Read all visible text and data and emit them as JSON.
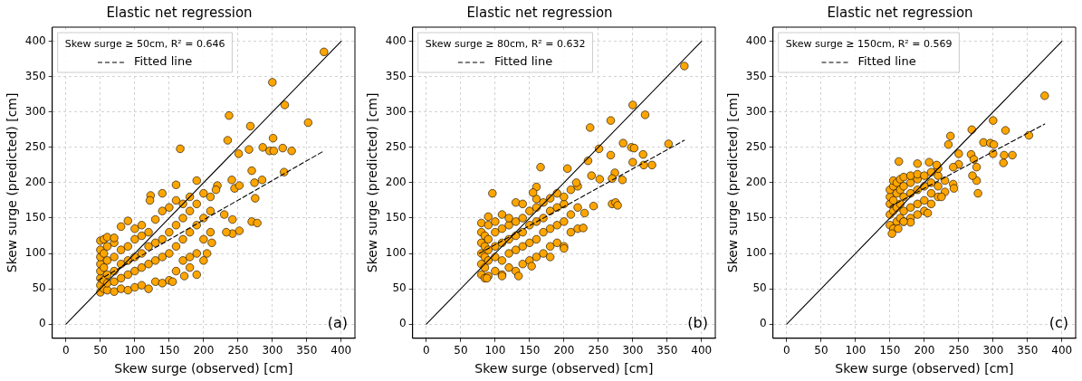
{
  "chart_data": [
    {
      "type": "scatter",
      "title": "Elastic net regression",
      "xlabel": "Skew surge (observed) [cm]",
      "ylabel": "Skew surge (predicted) [cm]",
      "legend_title": "Skew surge ≥ 50cm, R² = 0.646",
      "legend": "top left",
      "grid": true,
      "annotations": [
        "(a)"
      ],
      "xlim": [
        -20,
        420
      ],
      "ylim": [
        -20,
        420
      ],
      "xticks": [
        0,
        50,
        100,
        150,
        200,
        250,
        300,
        350,
        400
      ],
      "yticks": [
        0,
        50,
        100,
        150,
        200,
        250,
        300,
        350,
        400
      ],
      "series": [
        {
          "marker": "circle",
          "color": "#ffa500",
          "x": [
            50,
            50,
            50,
            50,
            50,
            50,
            50,
            50,
            55,
            55,
            55,
            55,
            55,
            60,
            60,
            60,
            60,
            60,
            60,
            70,
            70,
            70,
            70,
            70,
            70,
            80,
            80,
            80,
            80,
            80,
            90,
            90,
            90,
            90,
            90,
            100,
            100,
            100,
            100,
            100,
            110,
            110,
            110,
            110,
            110,
            120,
            120,
            120,
            120,
            130,
            130,
            130,
            130,
            140,
            140,
            140,
            140,
            150,
            150,
            150,
            150,
            160,
            160,
            160,
            160,
            170,
            170,
            170,
            170,
            180,
            180,
            180,
            180,
            190,
            190,
            190,
            200,
            200,
            200,
            210,
            210,
            210,
            375,
            300,
            318,
            237,
            352,
            268,
            235,
            301,
            166,
            266,
            286,
            296,
            302,
            315,
            328,
            251,
            270,
            317,
            274,
            285,
            241,
            190,
            160,
            220,
            218,
            245,
            252,
            140,
            123,
            122,
            275,
            270,
            278,
            242,
            242,
            252,
            233,
            230,
            212,
            205,
            190,
            172,
            180,
            155,
            200
          ],
          "values": [
            45,
            55,
            65,
            75,
            85,
            95,
            105,
            118,
            50,
            62,
            80,
            100,
            120,
            48,
            58,
            70,
            90,
            110,
            123,
            46,
            60,
            75,
            95,
            115,
            122,
            50,
            65,
            85,
            105,
            138,
            48,
            70,
            90,
            110,
            146,
            52,
            75,
            95,
            120,
            135,
            55,
            80,
            100,
            125,
            140,
            50,
            85,
            110,
            130,
            60,
            90,
            115,
            148,
            58,
            95,
            120,
            160,
            62,
            100,
            130,
            165,
            75,
            110,
            140,
            175,
            90,
            120,
            150,
            170,
            95,
            130,
            160,
            180,
            100,
            140,
            170,
            120,
            150,
            185,
            130,
            160,
            180,
            385,
            342,
            310,
            295,
            285,
            280,
            260,
            263,
            248,
            247,
            250,
            245,
            245,
            249,
            245,
            241,
            217,
            215,
            200,
            204,
            204,
            203,
            197,
            196,
            190,
            192,
            196,
            185,
            182,
            175,
            178,
            145,
            143,
            148,
            128,
            132,
            130,
            155,
            115,
            100,
            70,
            68,
            80,
            60,
            90
          ]
        },
        {
          "type": "line",
          "color": "#000000",
          "x": [
            0,
            400
          ],
          "values": [
            0,
            400
          ]
        },
        {
          "type": "line",
          "name": "Fitted line",
          "color": "#000000",
          "line_style": "dashed",
          "x": [
            47,
            375
          ],
          "values": [
            62,
            245
          ]
        }
      ]
    },
    {
      "type": "scatter",
      "title": "Elastic net regression",
      "xlabel": "Skew surge (observed) [cm]",
      "ylabel": "Skew surge (predicted) [cm]",
      "legend_title": "Skew surge ≥ 80cm, R² = 0.632",
      "legend": "top left",
      "grid": true,
      "annotations": [
        "(b)"
      ],
      "xlim": [
        -20,
        420
      ],
      "ylim": [
        -20,
        420
      ],
      "xticks": [
        0,
        50,
        100,
        150,
        200,
        250,
        300,
        350,
        400
      ],
      "yticks": [
        0,
        50,
        100,
        150,
        200,
        250,
        300,
        350,
        400
      ],
      "series": [
        {
          "marker": "circle",
          "color": "#ffa500",
          "x": [
            80,
            80,
            80,
            80,
            80,
            80,
            85,
            85,
            85,
            85,
            85,
            90,
            90,
            90,
            90,
            90,
            90,
            100,
            100,
            100,
            100,
            100,
            110,
            110,
            110,
            110,
            110,
            120,
            120,
            120,
            120,
            120,
            130,
            130,
            130,
            130,
            130,
            140,
            140,
            140,
            140,
            140,
            150,
            150,
            150,
            150,
            160,
            160,
            160,
            160,
            160,
            170,
            170,
            170,
            170,
            180,
            180,
            180,
            180,
            190,
            190,
            190,
            190,
            200,
            200,
            200,
            200,
            210,
            210,
            210,
            220,
            220,
            220,
            375,
            300,
            318,
            268,
            238,
            286,
            298,
            302,
            352,
            315,
            268,
            251,
            235,
            300,
            316,
            328,
            166,
            205,
            240,
            274,
            270,
            285,
            252,
            218,
            96,
            160,
            155,
            270,
            275,
            278,
            243,
            230,
            228,
            200,
            180,
            153,
            134,
            110,
            88
          ],
          "values": [
            70,
            85,
            100,
            115,
            130,
            143,
            65,
            80,
            95,
            110,
            125,
            68,
            90,
            105,
            120,
            140,
            152,
            75,
            95,
            110,
            130,
            145,
            70,
            90,
            115,
            135,
            155,
            80,
            100,
            120,
            140,
            150,
            75,
            105,
            125,
            145,
            172,
            85,
            110,
            130,
            150,
            170,
            90,
            115,
            140,
            160,
            95,
            120,
            145,
            165,
            177,
            100,
            130,
            150,
            172,
            110,
            135,
            160,
            178,
            115,
            140,
            165,
            185,
            110,
            145,
            170,
            180,
            130,
            155,
            190,
            135,
            165,
            195,
            365,
            310,
            296,
            288,
            278,
            256,
            250,
            249,
            255,
            240,
            239,
            248,
            231,
            229,
            225,
            225,
            222,
            220,
            210,
            214,
            206,
            204,
            205,
            200,
            185,
            194,
            186,
            170,
            172,
            168,
            167,
            157,
            136,
            107,
            95,
            82,
            68,
            68,
            65
          ]
        },
        {
          "type": "line",
          "color": "#000000",
          "x": [
            0,
            400
          ],
          "values": [
            0,
            400
          ]
        },
        {
          "type": "line",
          "name": "Fitted line",
          "color": "#000000",
          "line_style": "dashed",
          "x": [
            77,
            375
          ],
          "values": [
            100,
            260
          ]
        }
      ]
    },
    {
      "type": "scatter",
      "title": "Elastic net regression",
      "xlabel": "Skew surge (observed) [cm]",
      "ylabel": "Skew surge (predicted) [cm]",
      "legend_title": "Skew surge ≥ 150cm, R² = 0.569",
      "legend": "top left",
      "grid": true,
      "annotations": [
        "(c)"
      ],
      "xlim": [
        -20,
        420
      ],
      "ylim": [
        -20,
        420
      ],
      "xticks": [
        0,
        50,
        100,
        150,
        200,
        250,
        300,
        350,
        400
      ],
      "yticks": [
        0,
        50,
        100,
        150,
        200,
        250,
        300,
        350,
        400
      ],
      "series": [
        {
          "marker": "circle",
          "color": "#ffa500",
          "x": [
            150,
            150,
            150,
            150,
            150,
            155,
            155,
            155,
            155,
            155,
            160,
            160,
            160,
            160,
            165,
            165,
            165,
            165,
            170,
            170,
            170,
            170,
            170,
            180,
            180,
            180,
            180,
            180,
            190,
            190,
            190,
            190,
            190,
            200,
            200,
            200,
            200,
            210,
            210,
            210,
            210,
            220,
            220,
            220,
            220,
            375,
            300,
            269,
            318,
            238,
            235,
            286,
            296,
            301,
            352,
            300,
            316,
            328,
            315,
            250,
            268,
            272,
            276,
            276,
            270,
            278,
            163,
            190,
            207,
            218,
            250,
            242,
            242,
            243,
            230,
            230,
            225,
            205,
            180,
            170,
            162,
            153
          ],
          "values": [
            140,
            155,
            170,
            180,
            190,
            135,
            160,
            175,
            195,
            203,
            145,
            165,
            185,
            200,
            150,
            170,
            190,
            205,
            145,
            160,
            180,
            195,
            208,
            150,
            165,
            185,
            200,
            210,
            155,
            170,
            190,
            205,
            212,
            160,
            175,
            195,
            210,
            170,
            185,
            200,
            215,
            180,
            195,
            210,
            220,
            323,
            288,
            275,
            274,
            266,
            254,
            257,
            256,
            254,
            267,
            241,
            239,
            239,
            228,
            241,
            240,
            233,
            222,
            203,
            210,
            185,
            230,
            227,
            229,
            225,
            226,
            222,
            198,
            192,
            203,
            187,
            180,
            157,
            144,
            145,
            135,
            128
          ]
        },
        {
          "type": "line",
          "color": "#000000",
          "x": [
            0,
            400
          ],
          "values": [
            0,
            400
          ]
        },
        {
          "type": "line",
          "name": "Fitted line",
          "color": "#000000",
          "line_style": "dashed",
          "x": [
            150,
            375
          ],
          "values": [
            166,
            283
          ]
        }
      ]
    }
  ]
}
